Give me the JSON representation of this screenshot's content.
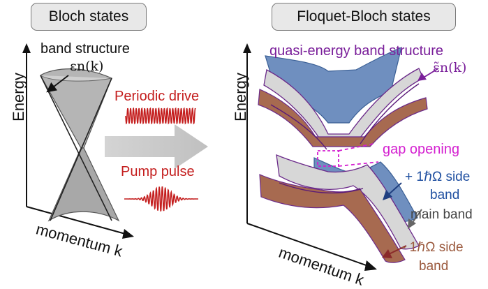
{
  "left_panel": {
    "title": "Bloch states",
    "subtitle": "band structure",
    "dispersion_label": "εn(k)",
    "y_axis": "Energy",
    "x_axis": "momentum k"
  },
  "middle": {
    "drive_label": "Periodic drive",
    "pulse_label": "Pump pulse"
  },
  "right_panel": {
    "title": "Floquet-Bloch states",
    "subtitle": "quasi-energy band structure",
    "dispersion_label": "ε̃n(k)",
    "y_axis": "Energy",
    "x_axis": "momentum k",
    "gap_label": "gap opening",
    "plus_side": "+ 1ℏΩ side",
    "plus_side_2": "band",
    "main_band": "main band",
    "minus_side": "- 1ℏΩ side",
    "minus_side_2": "band"
  },
  "colors": {
    "gray_band": "#b8b8b8",
    "drive_red": "#c41e1e",
    "blue_band": "#6f8fbf",
    "brown_band": "#a76a50",
    "purple": "#7a1f9a",
    "magenta": "#d41fd0"
  }
}
